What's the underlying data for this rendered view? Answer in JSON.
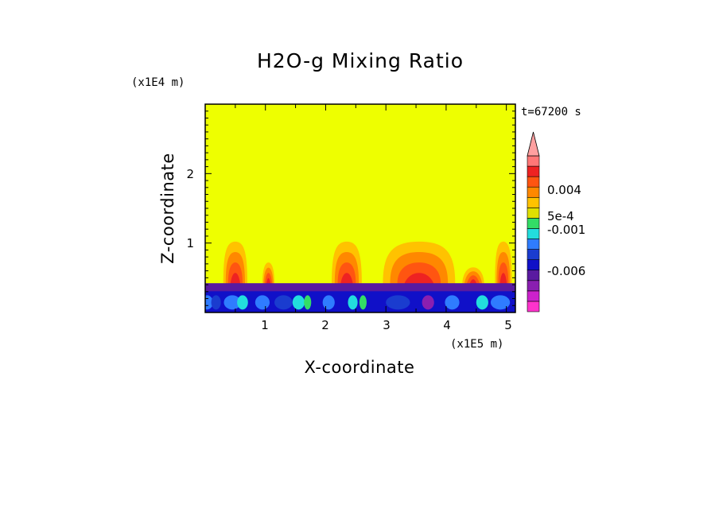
{
  "chart_data": {
    "type": "heatmap",
    "title": "H2O-g Mixing Ratio",
    "xlabel": "X-coordinate",
    "ylabel": "Z-coordinate",
    "x_unit": "(x1E5 m)",
    "y_unit": "(x1E4 m)",
    "time_label": "t=67200 s",
    "x_ticks": [
      "1",
      "2",
      "3",
      "4",
      "5"
    ],
    "y_ticks": [
      "1",
      "2"
    ],
    "xlim": [
      0,
      5.15
    ],
    "ylim": [
      0,
      3.0
    ],
    "colorbar": {
      "tick_labels": [
        "0.004",
        "5e-4",
        "-0.001",
        "-0.006"
      ],
      "colors": [
        "#ff33cc",
        "#cc22cc",
        "#8a1fb0",
        "#5a1aa0",
        "#1010c8",
        "#1a3ccf",
        "#2f7cff",
        "#22dddd",
        "#33dd66",
        "#e0e000",
        "#ffc200",
        "#ff8800",
        "#ff5511",
        "#ee2222",
        "#ff7777"
      ],
      "over_color": "#ffa0a0"
    },
    "field": {
      "background_color": "#eeff00",
      "boundary_layer_top": 0.42,
      "plumes": [
        {
          "x": 0.5,
          "top": 1.02,
          "half_width": 0.2
        },
        {
          "x": 1.05,
          "top": 0.72,
          "half_width": 0.1
        },
        {
          "x": 2.35,
          "top": 1.02,
          "half_width": 0.25
        },
        {
          "x": 3.55,
          "top": 1.02,
          "half_width": 0.6
        },
        {
          "x": 4.45,
          "top": 0.65,
          "half_width": 0.18
        },
        {
          "x": 4.95,
          "top": 1.02,
          "half_width": 0.14
        }
      ]
    }
  }
}
